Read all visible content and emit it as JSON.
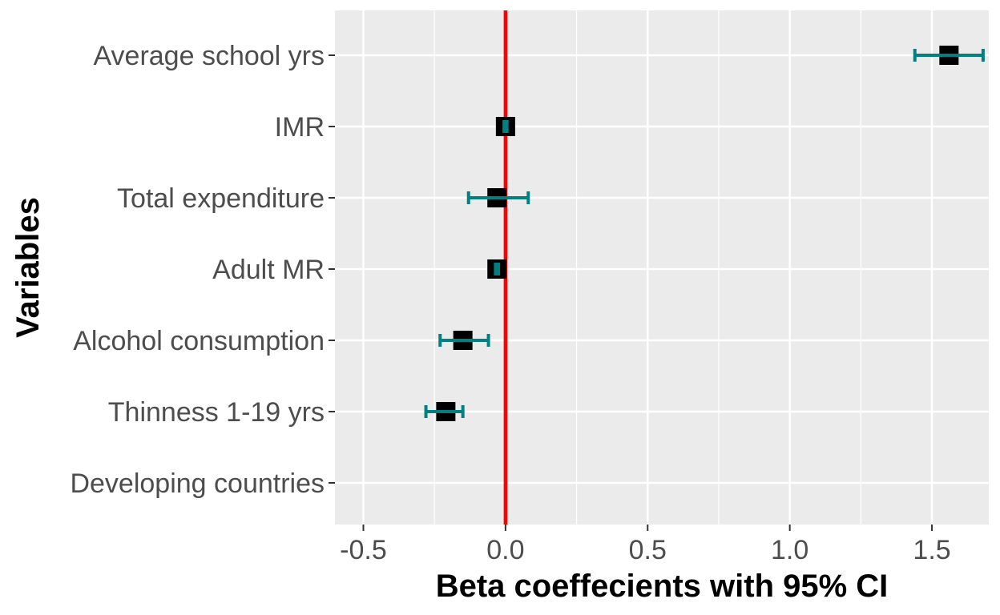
{
  "chart_data": {
    "type": "forest",
    "title": "",
    "xlabel": "Beta coeffecients with 95% CI",
    "ylabel": "Variables",
    "xlim": [
      -0.6,
      1.7
    ],
    "xticks": [
      -0.5,
      0.0,
      0.5,
      1.0,
      1.5
    ],
    "xtick_labels": [
      "-0.5",
      "0.0",
      "0.5",
      "1.0",
      "1.5"
    ],
    "reference_line": 0.0,
    "grid": true,
    "categories": [
      "Average school yrs",
      "IMR",
      "Total expenditure",
      "Adult MR",
      "Alcohol consumption",
      "Thinness 1-19 yrs",
      "Developing countries"
    ],
    "estimates": [
      1.56,
      0.0,
      -0.03,
      -0.03,
      -0.15,
      -0.21,
      null
    ],
    "ci_lower": [
      1.44,
      -0.005,
      -0.13,
      -0.035,
      -0.23,
      -0.28,
      null
    ],
    "ci_upper": [
      1.68,
      0.005,
      0.08,
      -0.025,
      -0.06,
      -0.15,
      null
    ]
  },
  "colors": {
    "panel_background": "#ebebeb",
    "grid": "#ffffff",
    "reference_line": "#ff0000",
    "error_bar": "#008080",
    "point": "#000000",
    "tick_text": "#4d4d4d",
    "axis_title": "#000000"
  }
}
